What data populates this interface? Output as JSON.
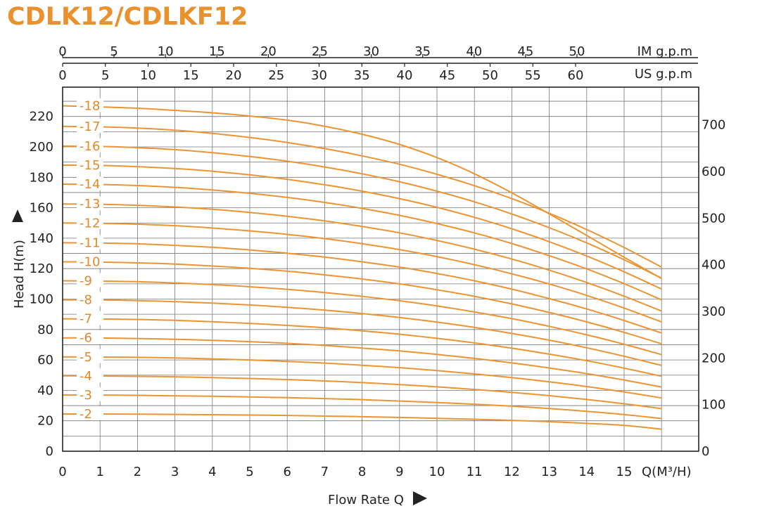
{
  "title": "CDLK12/CDLKF12",
  "colors": {
    "title": "#e8912d",
    "curve": "#ec9433",
    "stage_label": "#e08a2b",
    "axis": "#222222",
    "grid": "#777777"
  },
  "chart_data": {
    "type": "line",
    "title": "CDLK12/CDLKF12",
    "xlabel": "Flow Rate Q",
    "x_unit_label": "Q(M³/H)",
    "ylabel": "Head H(m)",
    "xlim": [
      0,
      16
    ],
    "ylim": [
      0,
      230
    ],
    "x_ticks": [
      "0",
      "1",
      "2",
      "3",
      "4",
      "5",
      "6",
      "7",
      "8",
      "9",
      "10",
      "11",
      "12",
      "13",
      "14",
      "15"
    ],
    "y_ticks": [
      "0",
      "20",
      "40",
      "60",
      "80",
      "100",
      "120",
      "140",
      "160",
      "180",
      "200",
      "220"
    ],
    "y2_label_ticks": [
      "0",
      "100",
      "200",
      "300",
      "400",
      "500",
      "600",
      "700"
    ],
    "top_axes": [
      {
        "label": "IM g.p.m",
        "ticks": [
          "0",
          "5",
          "10",
          "15",
          "20",
          "25",
          "30",
          "35",
          "40",
          "45",
          "50"
        ]
      },
      {
        "label": "US g.p.m",
        "ticks": [
          "0",
          "5",
          "10",
          "15",
          "20",
          "25",
          "30",
          "35",
          "40",
          "45",
          "50",
          "55",
          "60"
        ]
      }
    ],
    "grid": true,
    "x": [
      0,
      1,
      2,
      3,
      4,
      5,
      6,
      7,
      8,
      9,
      10,
      11,
      12,
      13,
      14,
      15,
      16
    ],
    "series": [
      {
        "name": "-2",
        "values": [
          24.5,
          24.5,
          24.4,
          24.2,
          24.0,
          23.8,
          23.5,
          23.1,
          22.7,
          22.2,
          21.6,
          21.0,
          20.3,
          19.4,
          18.3,
          17.0,
          14.5
        ]
      },
      {
        "name": "-3",
        "values": [
          37.0,
          36.9,
          36.7,
          36.4,
          36.1,
          35.7,
          35.2,
          34.6,
          33.9,
          33.0,
          32.0,
          30.9,
          29.6,
          28.1,
          26.2,
          24.1,
          21.5
        ]
      },
      {
        "name": "-4",
        "values": [
          49.5,
          49.4,
          49.2,
          48.9,
          48.4,
          47.8,
          47.1,
          46.2,
          45.1,
          43.8,
          42.3,
          40.6,
          38.7,
          36.5,
          34.0,
          31.2,
          28.0
        ]
      },
      {
        "name": "-5",
        "values": [
          62.0,
          61.9,
          61.7,
          61.3,
          60.7,
          60.0,
          59.0,
          57.9,
          56.5,
          54.9,
          53.0,
          50.8,
          48.4,
          45.6,
          42.5,
          39.0,
          35.0
        ]
      },
      {
        "name": "-6",
        "values": [
          74.5,
          74.4,
          74.1,
          73.6,
          72.9,
          72.0,
          70.9,
          69.5,
          67.8,
          65.9,
          63.6,
          61.0,
          58.0,
          54.7,
          51.0,
          46.8,
          42.2
        ]
      },
      {
        "name": "-7",
        "values": [
          87.0,
          86.9,
          86.6,
          86.0,
          85.1,
          84.0,
          82.7,
          81.1,
          79.1,
          76.9,
          74.2,
          71.2,
          67.7,
          63.8,
          59.5,
          54.6,
          49.3
        ]
      },
      {
        "name": "-8",
        "values": [
          99.5,
          99.4,
          99.0,
          98.3,
          97.3,
          96.1,
          94.6,
          92.7,
          90.5,
          87.9,
          84.9,
          81.4,
          77.4,
          73.0,
          68.0,
          62.4,
          56.4
        ]
      },
      {
        "name": "-9",
        "values": [
          112.0,
          111.8,
          111.4,
          110.6,
          109.5,
          108.1,
          106.4,
          104.3,
          101.8,
          98.9,
          95.5,
          91.5,
          87.1,
          82.1,
          76.5,
          70.3,
          63.5
        ]
      },
      {
        "name": "-10",
        "values": [
          124.5,
          124.3,
          123.8,
          123.0,
          121.7,
          120.2,
          118.3,
          115.9,
          113.2,
          110.0,
          106.1,
          101.8,
          96.8,
          91.2,
          85.0,
          78.1,
          70.6
        ]
      },
      {
        "name": "-11",
        "values": [
          137.0,
          136.8,
          136.3,
          135.3,
          134.0,
          132.3,
          130.1,
          127.6,
          124.5,
          121.0,
          116.8,
          112.0,
          106.5,
          100.3,
          93.5,
          85.9,
          77.7
        ]
      },
      {
        "name": "-12",
        "values": [
          150.0,
          149.8,
          149.2,
          148.2,
          146.7,
          144.8,
          142.5,
          139.7,
          136.4,
          132.5,
          127.9,
          122.6,
          116.6,
          109.9,
          102.4,
          94.1,
          85.0
        ]
      },
      {
        "name": "-13",
        "values": [
          162.5,
          162.3,
          161.6,
          160.5,
          159.0,
          156.9,
          154.4,
          151.4,
          147.7,
          143.5,
          138.5,
          132.8,
          126.3,
          119.0,
          110.9,
          101.9,
          92.1
        ]
      },
      {
        "name": "-14",
        "values": [
          175.5,
          175.3,
          174.6,
          173.4,
          171.7,
          169.5,
          166.8,
          163.5,
          159.6,
          155.0,
          149.6,
          143.5,
          136.5,
          128.5,
          119.8,
          110.1,
          99.5
        ]
      },
      {
        "name": "-15",
        "values": [
          188.0,
          187.8,
          187.0,
          185.8,
          184.0,
          181.6,
          178.7,
          175.1,
          170.9,
          166.0,
          160.3,
          153.7,
          146.2,
          137.7,
          128.3,
          117.9,
          106.6
        ]
      },
      {
        "name": "-16",
        "values": [
          200.5,
          200.3,
          199.5,
          198.2,
          196.2,
          193.7,
          190.6,
          186.8,
          182.3,
          177.1,
          170.9,
          163.9,
          155.9,
          146.9,
          136.9,
          125.8,
          113.7
        ]
      },
      {
        "name": "-17",
        "values": [
          213.5,
          213.2,
          212.4,
          211.0,
          208.9,
          206.2,
          202.9,
          198.9,
          194.1,
          188.6,
          182.0,
          174.5,
          166.0,
          156.4,
          145.7,
          133.9,
          121.0
        ]
      },
      {
        "name": "-18",
        "values": [
          227.0,
          226.3,
          225.4,
          224.0,
          222.4,
          220.3,
          217.6,
          213.6,
          208.3,
          201.6,
          193.0,
          182.3,
          169.8,
          156.0,
          141.8,
          127.5,
          113.5
        ]
      }
    ]
  }
}
